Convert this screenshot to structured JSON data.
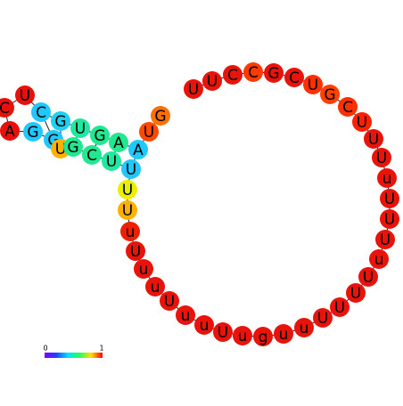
{
  "nodes": [
    {
      "label": "G",
      "color": "#ff7000"
    },
    {
      "label": "U",
      "color": "#ff4800"
    },
    {
      "label": "A",
      "color": "#1ecbff"
    },
    {
      "label": "A",
      "color": "#20e890"
    },
    {
      "label": "G",
      "color": "#20e890"
    },
    {
      "label": "U",
      "color": "#20e8a0"
    },
    {
      "label": "G",
      "color": "#20d0f0"
    },
    {
      "label": "C",
      "color": "#20c8ff"
    },
    {
      "label": "U",
      "color": "#e8100c"
    },
    {
      "label": "C",
      "color": "#e8100c"
    },
    {
      "label": "A",
      "color": "#e8100c"
    },
    {
      "label": "G",
      "color": "#20c8ff"
    },
    {
      "label": "G",
      "color": "#20c8ff"
    },
    {
      "label": "U",
      "color": "#ffb000"
    },
    {
      "label": "G",
      "color": "#20e890"
    },
    {
      "label": "C",
      "color": "#20e890"
    },
    {
      "label": "U",
      "color": "#20e8a0"
    },
    {
      "label": "U",
      "color": "#20c8ff"
    },
    {
      "label": "U",
      "color": "#e8f000"
    },
    {
      "label": "U",
      "color": "#ffb000"
    },
    {
      "label": "u",
      "color": "#ee2000"
    },
    {
      "label": "U",
      "color": "#e8140c"
    },
    {
      "label": "u",
      "color": "#e8140c"
    },
    {
      "label": "u",
      "color": "#e8140c"
    },
    {
      "label": "U",
      "color": "#e8140c"
    },
    {
      "label": "u",
      "color": "#e8140c"
    },
    {
      "label": "u",
      "color": "#e8140c"
    },
    {
      "label": "U",
      "color": "#e8140c"
    },
    {
      "label": "u",
      "color": "#e8140c"
    },
    {
      "label": "g",
      "color": "#e8140c"
    },
    {
      "label": "u",
      "color": "#e8140c"
    },
    {
      "label": "u",
      "color": "#e8140c"
    },
    {
      "label": "U",
      "color": "#e8140c"
    },
    {
      "label": "U",
      "color": "#e8140c"
    },
    {
      "label": "U",
      "color": "#e8140c"
    },
    {
      "label": "U",
      "color": "#e8140c"
    },
    {
      "label": "u",
      "color": "#e8140c"
    },
    {
      "label": "U",
      "color": "#e8140c"
    },
    {
      "label": "U",
      "color": "#e8140c"
    },
    {
      "label": "U",
      "color": "#e8140c"
    },
    {
      "label": "u",
      "color": "#e8140c"
    },
    {
      "label": "U",
      "color": "#e8140c"
    },
    {
      "label": "U",
      "color": "#e8140c"
    },
    {
      "label": "U",
      "color": "#ff2000"
    },
    {
      "label": "C",
      "color": "#ff3000"
    },
    {
      "label": "G",
      "color": "#ff4000"
    },
    {
      "label": "U",
      "color": "#ff3000"
    },
    {
      "label": "C",
      "color": "#e8140c"
    },
    {
      "label": "G",
      "color": "#e8140c"
    },
    {
      "label": "C",
      "color": "#ff3a00"
    },
    {
      "label": "C",
      "color": "#e8140c"
    },
    {
      "label": "U",
      "color": "#e8140c"
    },
    {
      "label": "U",
      "color": "#e8140c"
    }
  ],
  "legend": {
    "min": "0",
    "max": "1"
  }
}
